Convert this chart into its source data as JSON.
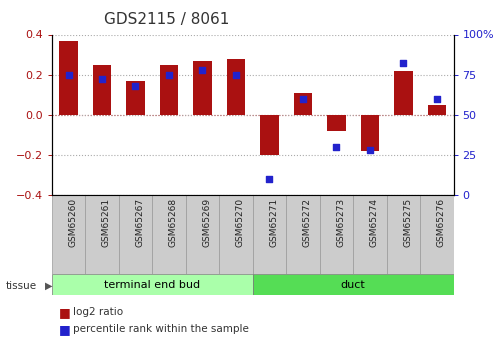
{
  "title": "GDS2115 / 8061",
  "samples": [
    "GSM65260",
    "GSM65261",
    "GSM65267",
    "GSM65268",
    "GSM65269",
    "GSM65270",
    "GSM65271",
    "GSM65272",
    "GSM65273",
    "GSM65274",
    "GSM65275",
    "GSM65276"
  ],
  "log2_ratio": [
    0.37,
    0.25,
    0.17,
    0.25,
    0.27,
    0.28,
    -0.2,
    0.11,
    -0.08,
    -0.18,
    0.22,
    0.05
  ],
  "percentile_rank": [
    75,
    72,
    68,
    75,
    78,
    75,
    10,
    60,
    30,
    28,
    82,
    60
  ],
  "bar_color": "#aa1111",
  "dot_color": "#2222cc",
  "ylim_left": [
    -0.4,
    0.4
  ],
  "ylim_right": [
    0,
    100
  ],
  "yticks_left": [
    -0.4,
    -0.2,
    0.0,
    0.2,
    0.4
  ],
  "yticks_right": [
    0,
    25,
    50,
    75,
    100
  ],
  "yticklabels_right": [
    "0",
    "25",
    "50",
    "75",
    "100%"
  ],
  "groups": [
    {
      "label": "terminal end bud",
      "start": 0,
      "end": 5,
      "color": "#aaffaa"
    },
    {
      "label": "duct",
      "start": 6,
      "end": 11,
      "color": "#55dd55"
    }
  ],
  "tissue_label": "tissue",
  "legend_items": [
    {
      "label": "log2 ratio",
      "color": "#aa1111"
    },
    {
      "label": "percentile rank within the sample",
      "color": "#2222cc"
    }
  ],
  "bar_width": 0.55,
  "background_color": "#ffffff",
  "grid_color": "#aaaaaa",
  "zero_line_color": "#cc0000",
  "tick_label_fontsize": 6.5,
  "title_fontsize": 11,
  "cell_bg": "#cccccc",
  "cell_border": "#999999"
}
